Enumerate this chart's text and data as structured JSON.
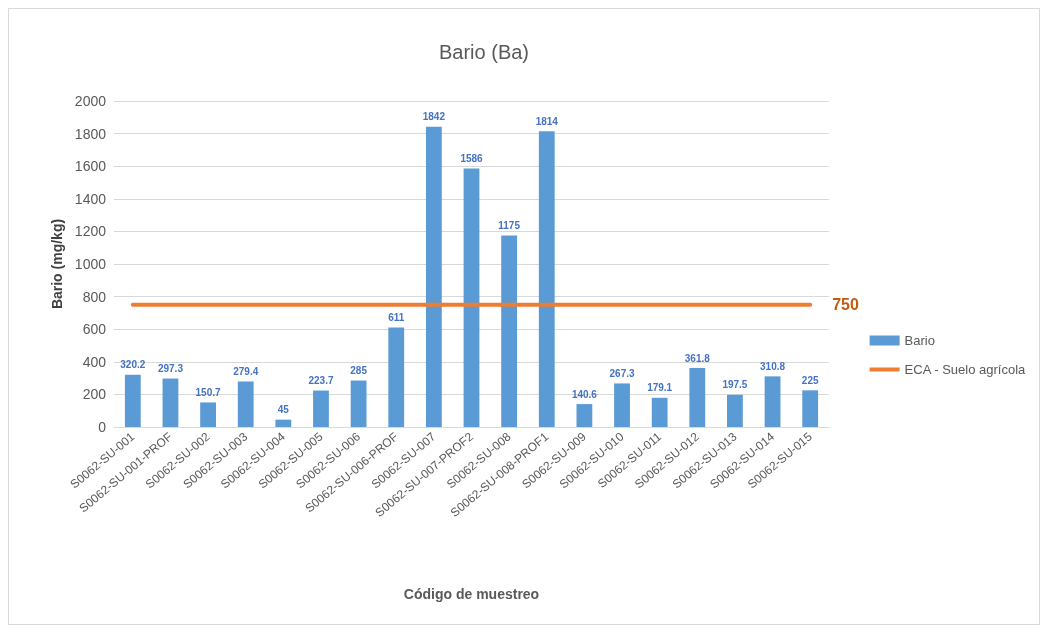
{
  "chart_data": {
    "type": "bar",
    "title": "Bario (Ba)",
    "xlabel": "Código de muestreo",
    "ylabel": "Bario (mg/kg)",
    "categories": [
      "S0062-SU-001",
      "S0062-SU-001-PROF",
      "S0062-SU-002",
      "S0062-SU-003",
      "S0062-SU-004",
      "S0062-SU-005",
      "S0062-SU-006",
      "S0062-SU-006-PROF",
      "S0062-SU-007",
      "S0062-SU-007-PROF2",
      "S0062-SU-008",
      "S0062-SU-008-PROF1",
      "S0062-SU-009",
      "S0062-SU-010",
      "S0062-SU-011",
      "S0062-SU-012",
      "S0062-SU-013",
      "S0062-SU-014",
      "S0062-SU-015"
    ],
    "series": [
      {
        "name": "Bario",
        "color": "#5b9bd5",
        "values": [
          320.2,
          297.3,
          150.7,
          279.4,
          45,
          223.7,
          285,
          611,
          1842,
          1586,
          1175,
          1814,
          140.6,
          267.3,
          179.1,
          361.8,
          197.5,
          310.8,
          225
        ]
      },
      {
        "name": "ECA - Suelo agrícola",
        "type": "line",
        "color": "#ed7d31",
        "values": [
          750,
          750,
          750,
          750,
          750,
          750,
          750,
          750,
          750,
          750,
          750,
          750,
          750,
          750,
          750,
          750,
          750,
          750,
          750
        ],
        "value_labels": [
          null,
          null,
          null,
          null,
          null,
          null,
          null,
          null,
          null,
          null,
          null,
          null,
          null,
          null,
          null,
          null,
          null,
          null,
          "750"
        ]
      }
    ],
    "ylim": [
      0,
      2000
    ],
    "yticks": [
      0,
      200,
      400,
      600,
      800,
      1000,
      1200,
      1400,
      1600,
      1800,
      2000
    ],
    "grid": "y",
    "legend": "right",
    "data_labels": true,
    "marker": "none"
  }
}
